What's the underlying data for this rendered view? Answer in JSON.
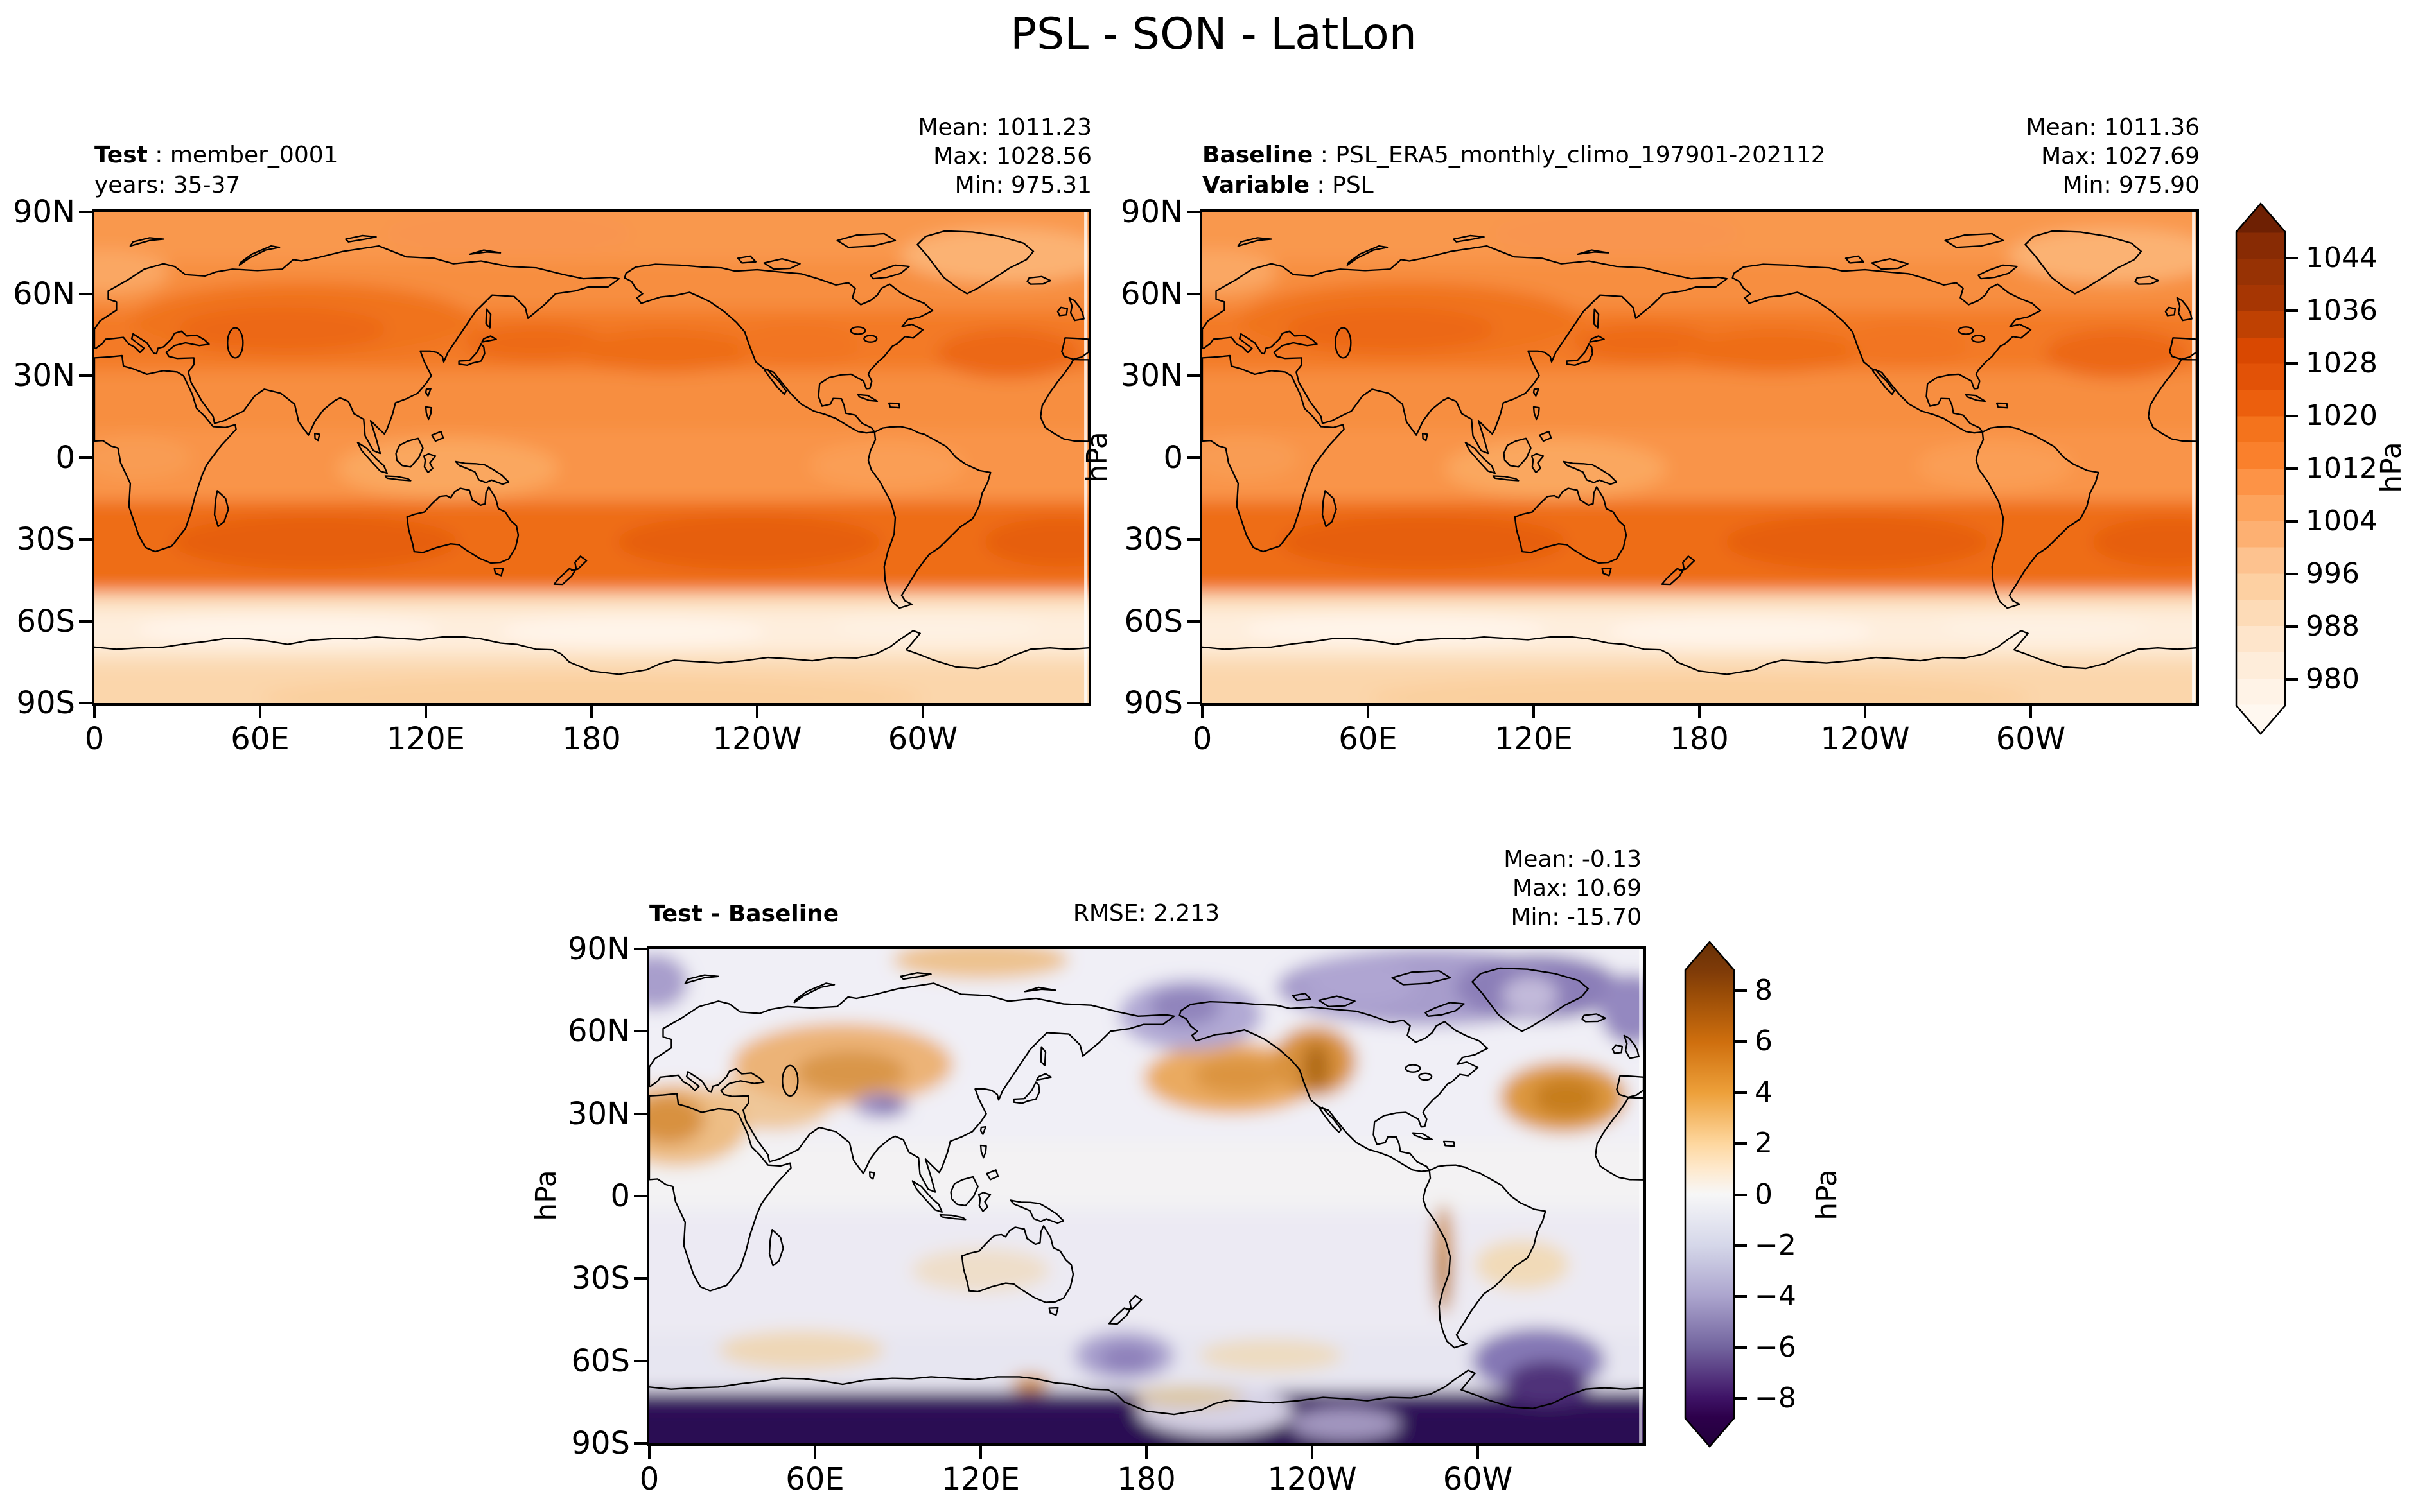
{
  "title": "PSL - SON - LatLon",
  "units": "hPa",
  "sep": " : ",
  "panels": {
    "test": {
      "label": "Test",
      "value": "member_0001",
      "subtitle": "years: 35-37",
      "stats": {
        "mean": "Mean: 1011.23",
        "max": "Max: 1028.56",
        "min": "Min: 975.31"
      }
    },
    "baseline": {
      "label": "Baseline",
      "value": "PSL_ERA5_monthly_climo_197901-202112",
      "label2": "Variable",
      "value2": "PSL",
      "stats": {
        "mean": "Mean: 1011.36",
        "max": "Max: 1027.69",
        "min": "Min: 975.90"
      }
    },
    "diff": {
      "label": "Test - Baseline",
      "rmse": "RMSE: 2.213",
      "stats": {
        "mean": "Mean: -0.13",
        "max": "Max: 10.69",
        "min": "Min: -15.70"
      }
    }
  },
  "axes": {
    "x_ticks": [
      "0",
      "60E",
      "120E",
      "180",
      "120W",
      "60W"
    ],
    "y_ticks": [
      "90N",
      "60N",
      "30N",
      "0",
      "30S",
      "60S",
      "90S"
    ]
  },
  "colorbars": {
    "absolute": {
      "ticks": [
        "1044",
        "1036",
        "1028",
        "1020",
        "1012",
        "1004",
        "996",
        "988",
        "980"
      ],
      "unit": "hPa",
      "colormap": "sequential oranges",
      "min_color": "#fff5eb",
      "max_color": "#7f2704"
    },
    "difference": {
      "ticks": [
        "8",
        "6",
        "4",
        "2",
        "0",
        "−2",
        "−4",
        "−6",
        "−8"
      ],
      "unit": "hPa",
      "colormap": "diverging purple-white-orange",
      "neg_color": "#2d004b",
      "zero_color": "#f7f7f7",
      "pos_color": "#7f3b08"
    }
  },
  "chart_data": [
    {
      "type": "heatmap",
      "subtype": "filled-contour-latlon-map",
      "title": "Test : member_0001",
      "subtitle": "years: 35-37",
      "variable": "PSL",
      "season": "SON",
      "units": "hPa",
      "x_ticks": [
        "0",
        "60E",
        "120E",
        "180",
        "120W",
        "60W"
      ],
      "y_ticks": [
        "90N",
        "60N",
        "30N",
        "0",
        "30S",
        "60S",
        "90S"
      ],
      "contour_levels": [
        980,
        988,
        996,
        1004,
        1012,
        1020,
        1028,
        1036,
        1044
      ],
      "stats": {
        "mean": 1011.23,
        "max": 1028.56,
        "min": 975.31
      },
      "colormap": "sequential oranges",
      "pattern": "Subtropical high-pressure bands near 30N and 20-45S (~1016-1024 hPa, darkest oranges); circumpolar low band 55-70S (pale, ~975-990 hPa); Antarctic interior light peach ~990-1004; mid orange ~1008-1012 over tropics and Arctic"
    },
    {
      "type": "heatmap",
      "subtype": "filled-contour-latlon-map",
      "title": "Baseline : PSL_ERA5_monthly_climo_197901-202112",
      "variable": "PSL",
      "season": "SON",
      "units": "hPa",
      "x_ticks": [
        "0",
        "60E",
        "120E",
        "180",
        "120W",
        "60W"
      ],
      "y_ticks": [
        "90N",
        "60N",
        "30N",
        "0",
        "30S",
        "60S",
        "90S"
      ],
      "contour_levels": [
        980,
        988,
        996,
        1004,
        1012,
        1020,
        1028,
        1036,
        1044
      ],
      "stats": {
        "mean": 1011.36,
        "max": 1027.69,
        "min": 975.9
      },
      "colormap": "sequential oranges",
      "pattern": "Nearly identical spatial pattern to Test panel: subtropical highs ~30N and 20-45S, deep circumpolar low 55-70S, pale Antarctic interior"
    },
    {
      "type": "heatmap",
      "subtype": "filled-contour-latlon-map",
      "title": "Test - Baseline",
      "rmse": 2.213,
      "units": "hPa",
      "x_ticks": [
        "0",
        "60E",
        "120E",
        "180",
        "120W",
        "60W"
      ],
      "y_ticks": [
        "90N",
        "60N",
        "30N",
        "0",
        "30S",
        "60S",
        "90S"
      ],
      "contour_levels": [
        -8,
        -6,
        -4,
        -2,
        0,
        2,
        4,
        6,
        8
      ],
      "stats": {
        "mean": -0.13,
        "max": 10.69,
        "min": -15.7
      },
      "colormap": "diverging purple-white-orange",
      "pattern": "Strong negative (dark purple, < -8) over Antarctica; negative (purple, -2 to -6) over Arctic, Greenland, Bering Sea, south of New Zealand and near Antarctic Peninsula; positive (orange, +2 to +8) over North Africa, central Asia, Tibet edge, North Pacific, western North America, North Atlantic and along the Andes; near zero over tropical oceans"
    }
  ]
}
